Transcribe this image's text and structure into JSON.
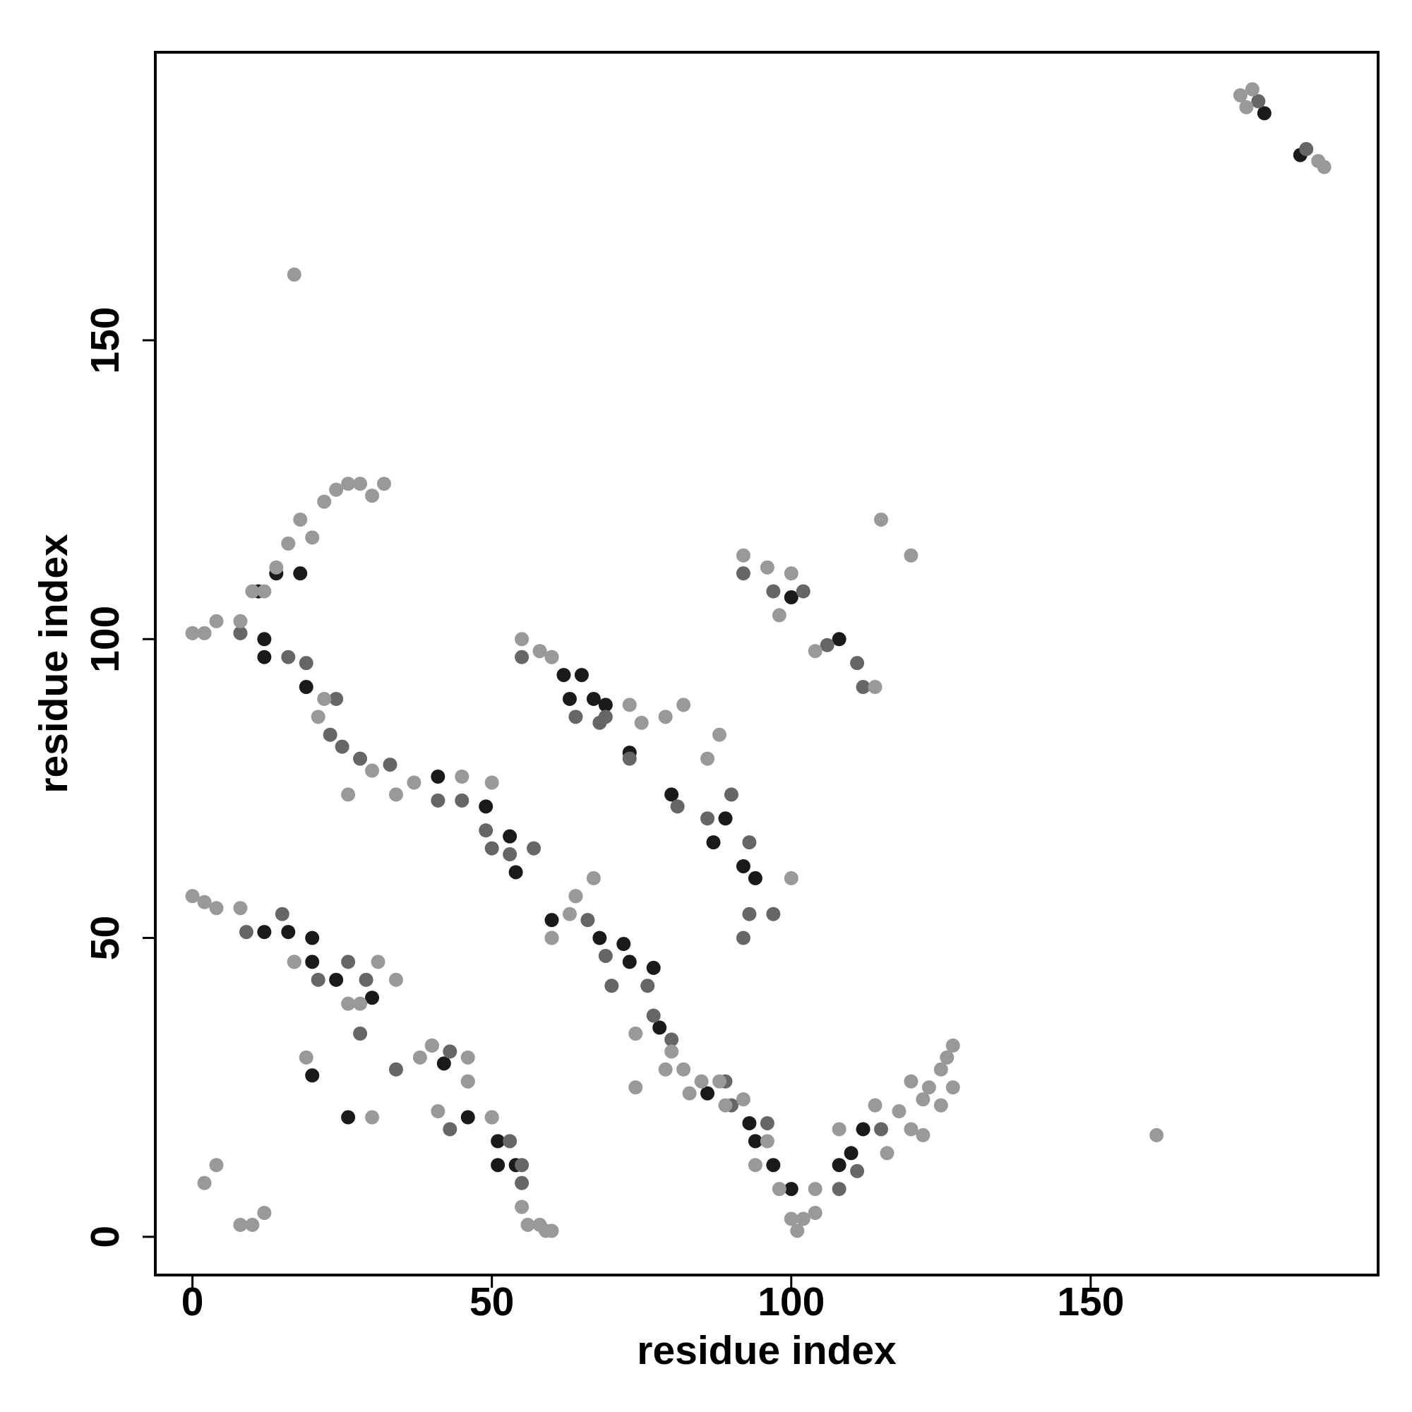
{
  "chart_data": {
    "type": "scatter",
    "xlabel": "residue index",
    "ylabel": "residue index",
    "xlim": [
      -6.2,
      198
    ],
    "ylim": [
      -6.4,
      198.2
    ],
    "xticks": [
      0,
      50,
      100,
      150
    ],
    "yticks": [
      0,
      50,
      100,
      150
    ],
    "series": [
      {
        "color": "#1a1a1a",
        "x": [
          11,
          14,
          18,
          12,
          12,
          19,
          41,
          49,
          54,
          53,
          12,
          16,
          20,
          20,
          24,
          30,
          20,
          26,
          42,
          46,
          51,
          51,
          54,
          60,
          68,
          72,
          73,
          77,
          78,
          86,
          93,
          94,
          97,
          100,
          108,
          110,
          112,
          63,
          65,
          67,
          69,
          73,
          80,
          87,
          89,
          92,
          94,
          100,
          108,
          179,
          185,
          62
        ],
        "values": [
          108,
          111,
          111,
          100,
          97,
          92,
          77,
          72,
          61,
          67,
          51,
          51,
          46,
          50,
          43,
          40,
          27,
          20,
          29,
          20,
          16,
          12,
          12,
          53,
          50,
          49,
          46,
          45,
          35,
          24,
          19,
          16,
          12,
          8,
          12,
          14,
          18,
          90,
          94,
          90,
          89,
          81,
          74,
          66,
          70,
          62,
          60,
          107,
          100,
          188,
          181,
          94
        ]
      },
      {
        "color": "#666666",
        "x": [
          8,
          16,
          19,
          24,
          23,
          25,
          28,
          33,
          41,
          45,
          49,
          50,
          53,
          57,
          9,
          15,
          17,
          21,
          26,
          29,
          28,
          34,
          40,
          43,
          43,
          46,
          50,
          53,
          55,
          55,
          60,
          66,
          69,
          70,
          76,
          77,
          80,
          89,
          90,
          96,
          108,
          111,
          115,
          60,
          64,
          68,
          69,
          73,
          81,
          86,
          90,
          93,
          97,
          93,
          92,
          55,
          92,
          97,
          102,
          106,
          111,
          112,
          178,
          186
        ],
        "values": [
          101,
          97,
          96,
          90,
          84,
          82,
          80,
          79,
          73,
          73,
          68,
          65,
          64,
          65,
          51,
          54,
          46,
          43,
          46,
          43,
          34,
          28,
          32,
          31,
          18,
          26,
          20,
          16,
          9,
          12,
          50,
          53,
          47,
          42,
          42,
          37,
          33,
          26,
          22,
          19,
          8,
          11,
          18,
          97,
          87,
          86,
          87,
          80,
          72,
          70,
          74,
          66,
          54,
          54,
          50,
          97,
          111,
          108,
          108,
          99,
          96,
          92,
          190,
          182
        ]
      },
      {
        "color": "#999999",
        "x": [
          0,
          2,
          4,
          8,
          10,
          12,
          14,
          16,
          18,
          20,
          22,
          24,
          26,
          28,
          30,
          32,
          17,
          115,
          120,
          161,
          21,
          22,
          26,
          30,
          34,
          37,
          45,
          50,
          0,
          2,
          4,
          8,
          17,
          26,
          28,
          31,
          34,
          30,
          19,
          8,
          10,
          2,
          4,
          12,
          38,
          40,
          41,
          46,
          46,
          50,
          55,
          56,
          58,
          59,
          60,
          55,
          58,
          60,
          64,
          73,
          75,
          79,
          82,
          88,
          86,
          100,
          60,
          63,
          64,
          67,
          74,
          74,
          79,
          80,
          82,
          83,
          85,
          88,
          89,
          92,
          96,
          94,
          98,
          100,
          101,
          102,
          104,
          104,
          108,
          114,
          116,
          118,
          120,
          122,
          122,
          120,
          123,
          125,
          125,
          126,
          127,
          127,
          92,
          96,
          98,
          100,
          104,
          114,
          175,
          176,
          177,
          188,
          189
        ],
        "values": [
          101,
          101,
          103,
          103,
          108,
          108,
          112,
          116,
          120,
          117,
          123,
          125,
          126,
          126,
          124,
          126,
          161,
          120,
          114,
          17,
          87,
          90,
          74,
          78,
          74,
          76,
          77,
          76,
          57,
          56,
          55,
          55,
          46,
          39,
          39,
          46,
          43,
          20,
          30,
          2,
          2,
          9,
          12,
          4,
          30,
          32,
          21,
          30,
          26,
          20,
          5,
          2,
          2,
          1,
          1,
          100,
          98,
          97,
          57,
          89,
          86,
          87,
          89,
          84,
          80,
          60,
          50,
          54,
          57,
          60,
          34,
          25,
          28,
          31,
          28,
          24,
          26,
          26,
          22,
          23,
          16,
          12,
          8,
          3,
          1,
          3,
          4,
          8,
          18,
          22,
          14,
          21,
          18,
          17,
          23,
          26,
          25,
          22,
          28,
          30,
          25,
          32,
          114,
          112,
          104,
          111,
          98,
          92,
          191,
          189,
          192,
          180,
          179
        ]
      }
    ]
  }
}
